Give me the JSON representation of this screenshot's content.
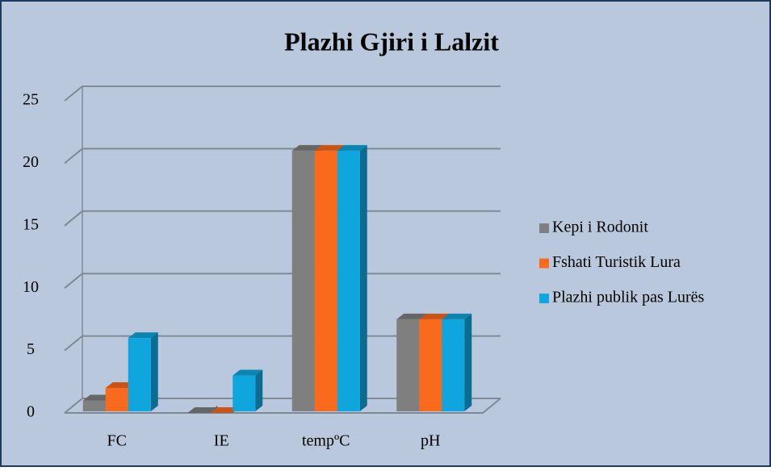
{
  "chart_data": {
    "type": "bar",
    "title": "Plazhi Gjiri i Lalzit",
    "categories": [
      "FC",
      "IE",
      "tempºC",
      "pH"
    ],
    "series": [
      {
        "name": "Kepi i Rodonit",
        "color": "#7f7f7f",
        "values": [
          1,
          0,
          21,
          7.5
        ]
      },
      {
        "name": "Fshati Turistik Lura",
        "color": "#fa6a1c",
        "values": [
          2,
          0,
          21,
          7.5
        ]
      },
      {
        "name": "Plazhi publik pas Lurës",
        "color": "#0fa6dd",
        "values": [
          6,
          3,
          21,
          7.5
        ]
      }
    ],
    "ylim": [
      0,
      25
    ],
    "yticks": [
      0,
      5,
      10,
      15,
      20,
      25
    ],
    "grid": true,
    "legend": "right"
  }
}
